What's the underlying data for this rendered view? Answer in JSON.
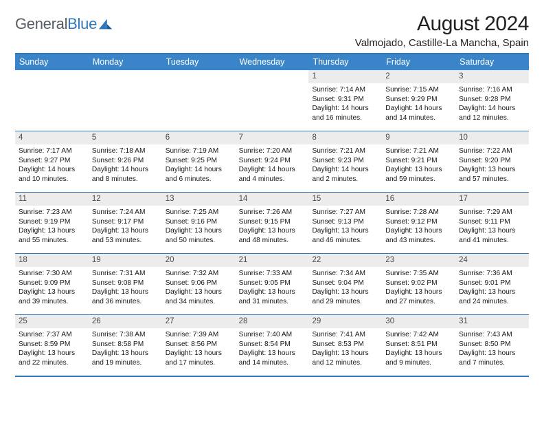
{
  "logo": {
    "word1": "General",
    "word2": "Blue"
  },
  "title": "August 2024",
  "location": "Valmojado, Castille-La Mancha, Spain",
  "colors": {
    "accent": "#3a85c9",
    "border": "#2f78bc",
    "daynum_bg": "#ececec",
    "text": "#161616",
    "logo_gray": "#555c63",
    "logo_blue": "#2f78bc"
  },
  "weekdays": [
    "Sunday",
    "Monday",
    "Tuesday",
    "Wednesday",
    "Thursday",
    "Friday",
    "Saturday"
  ],
  "weeks": [
    [
      null,
      null,
      null,
      null,
      {
        "n": "1",
        "sr": "7:14 AM",
        "ss": "9:31 PM",
        "dh": "14",
        "dm": "16"
      },
      {
        "n": "2",
        "sr": "7:15 AM",
        "ss": "9:29 PM",
        "dh": "14",
        "dm": "14"
      },
      {
        "n": "3",
        "sr": "7:16 AM",
        "ss": "9:28 PM",
        "dh": "14",
        "dm": "12"
      }
    ],
    [
      {
        "n": "4",
        "sr": "7:17 AM",
        "ss": "9:27 PM",
        "dh": "14",
        "dm": "10"
      },
      {
        "n": "5",
        "sr": "7:18 AM",
        "ss": "9:26 PM",
        "dh": "14",
        "dm": "8"
      },
      {
        "n": "6",
        "sr": "7:19 AM",
        "ss": "9:25 PM",
        "dh": "14",
        "dm": "6"
      },
      {
        "n": "7",
        "sr": "7:20 AM",
        "ss": "9:24 PM",
        "dh": "14",
        "dm": "4"
      },
      {
        "n": "8",
        "sr": "7:21 AM",
        "ss": "9:23 PM",
        "dh": "14",
        "dm": "2"
      },
      {
        "n": "9",
        "sr": "7:21 AM",
        "ss": "9:21 PM",
        "dh": "13",
        "dm": "59"
      },
      {
        "n": "10",
        "sr": "7:22 AM",
        "ss": "9:20 PM",
        "dh": "13",
        "dm": "57"
      }
    ],
    [
      {
        "n": "11",
        "sr": "7:23 AM",
        "ss": "9:19 PM",
        "dh": "13",
        "dm": "55"
      },
      {
        "n": "12",
        "sr": "7:24 AM",
        "ss": "9:17 PM",
        "dh": "13",
        "dm": "53"
      },
      {
        "n": "13",
        "sr": "7:25 AM",
        "ss": "9:16 PM",
        "dh": "13",
        "dm": "50"
      },
      {
        "n": "14",
        "sr": "7:26 AM",
        "ss": "9:15 PM",
        "dh": "13",
        "dm": "48"
      },
      {
        "n": "15",
        "sr": "7:27 AM",
        "ss": "9:13 PM",
        "dh": "13",
        "dm": "46"
      },
      {
        "n": "16",
        "sr": "7:28 AM",
        "ss": "9:12 PM",
        "dh": "13",
        "dm": "43"
      },
      {
        "n": "17",
        "sr": "7:29 AM",
        "ss": "9:11 PM",
        "dh": "13",
        "dm": "41"
      }
    ],
    [
      {
        "n": "18",
        "sr": "7:30 AM",
        "ss": "9:09 PM",
        "dh": "13",
        "dm": "39"
      },
      {
        "n": "19",
        "sr": "7:31 AM",
        "ss": "9:08 PM",
        "dh": "13",
        "dm": "36"
      },
      {
        "n": "20",
        "sr": "7:32 AM",
        "ss": "9:06 PM",
        "dh": "13",
        "dm": "34"
      },
      {
        "n": "21",
        "sr": "7:33 AM",
        "ss": "9:05 PM",
        "dh": "13",
        "dm": "31"
      },
      {
        "n": "22",
        "sr": "7:34 AM",
        "ss": "9:04 PM",
        "dh": "13",
        "dm": "29"
      },
      {
        "n": "23",
        "sr": "7:35 AM",
        "ss": "9:02 PM",
        "dh": "13",
        "dm": "27"
      },
      {
        "n": "24",
        "sr": "7:36 AM",
        "ss": "9:01 PM",
        "dh": "13",
        "dm": "24"
      }
    ],
    [
      {
        "n": "25",
        "sr": "7:37 AM",
        "ss": "8:59 PM",
        "dh": "13",
        "dm": "22"
      },
      {
        "n": "26",
        "sr": "7:38 AM",
        "ss": "8:58 PM",
        "dh": "13",
        "dm": "19"
      },
      {
        "n": "27",
        "sr": "7:39 AM",
        "ss": "8:56 PM",
        "dh": "13",
        "dm": "17"
      },
      {
        "n": "28",
        "sr": "7:40 AM",
        "ss": "8:54 PM",
        "dh": "13",
        "dm": "14"
      },
      {
        "n": "29",
        "sr": "7:41 AM",
        "ss": "8:53 PM",
        "dh": "13",
        "dm": "12"
      },
      {
        "n": "30",
        "sr": "7:42 AM",
        "ss": "8:51 PM",
        "dh": "13",
        "dm": "9"
      },
      {
        "n": "31",
        "sr": "7:43 AM",
        "ss": "8:50 PM",
        "dh": "13",
        "dm": "7"
      }
    ]
  ],
  "labels": {
    "sunrise": "Sunrise:",
    "sunset": "Sunset:",
    "daylight": "Daylight:",
    "hours": "hours",
    "and": "and",
    "minutes": "minutes."
  }
}
